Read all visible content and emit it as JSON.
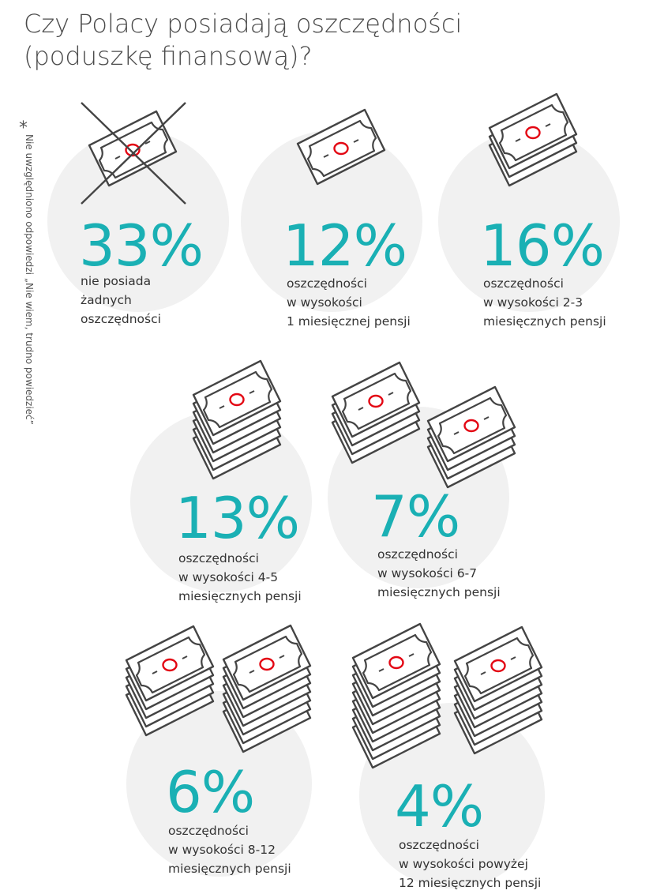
{
  "title": [
    "Czy Polacy posiadają oszczędności",
    "(poduszkę finansową)?"
  ],
  "footnote": {
    "symbol": "*",
    "text": "Nie uwzględniono odpowiedzi „Nie wiem, trudno powiedzieć”"
  },
  "colors": {
    "accent": "#1ab0b4",
    "icon_stroke": "#444444",
    "icon_mark": "#e30613",
    "circle_bg": "#f1f1f1"
  },
  "chart_data": {
    "type": "infographic",
    "unit": "%",
    "items": [
      {
        "label": "33%",
        "value": 33,
        "description": [
          "nie posiada",
          "żadnych",
          "oszczędności"
        ],
        "icon": "crossed-out-banknote-icon"
      },
      {
        "label": "12%",
        "value": 12,
        "description": [
          "oszczędności",
          "w wysokości",
          "1 miesięcznej pensji"
        ],
        "icon": "banknote-icon"
      },
      {
        "label": "16%",
        "value": 16,
        "description": [
          "oszczędności",
          "w wysokości 2-3",
          "miesięcznych pensji"
        ],
        "icon": "banknote-stack-icon"
      },
      {
        "label": "13%",
        "value": 13,
        "description": [
          "oszczędności",
          "w wysokości 4-5",
          "miesięcznych pensji"
        ],
        "icon": "banknote-stack-icon"
      },
      {
        "label": "7%",
        "value": 7,
        "description": [
          "oszczędności",
          "w wysokości 6-7",
          "miesięcznych pensji"
        ],
        "icon": "two-banknote-stacks-icon"
      },
      {
        "label": "6%",
        "value": 6,
        "description": [
          "oszczędności",
          "w wysokości 8-12",
          "miesięcznych pensji"
        ],
        "icon": "two-banknote-stacks-icon"
      },
      {
        "label": "4%",
        "value": 4,
        "description": [
          "oszczędności",
          "w wysokości powyżej",
          "12 miesięcznych pensji"
        ],
        "icon": "two-banknote-stacks-icon"
      }
    ]
  }
}
